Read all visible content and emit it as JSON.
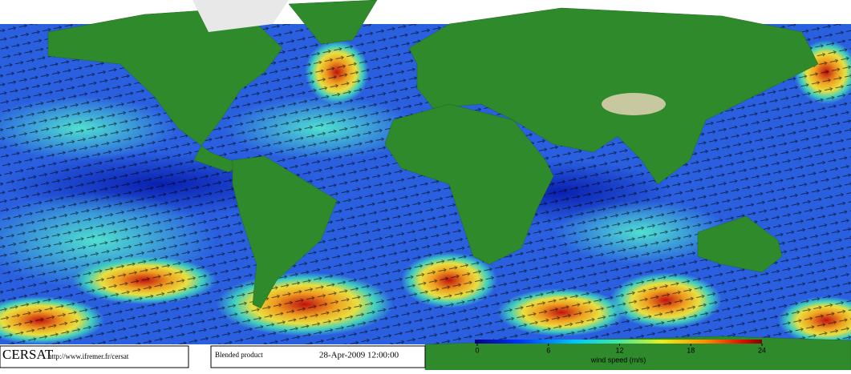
{
  "logo": "CERSAT",
  "url": "http://www.ifremer.fr/cersat",
  "product": "Blended product",
  "date": "28-Apr-2009 12:00:00",
  "colorbar": {
    "range": [
      0,
      24
    ],
    "ticks": [
      0,
      6,
      12,
      18,
      24
    ],
    "label": "wind speed (m/s)"
  }
}
